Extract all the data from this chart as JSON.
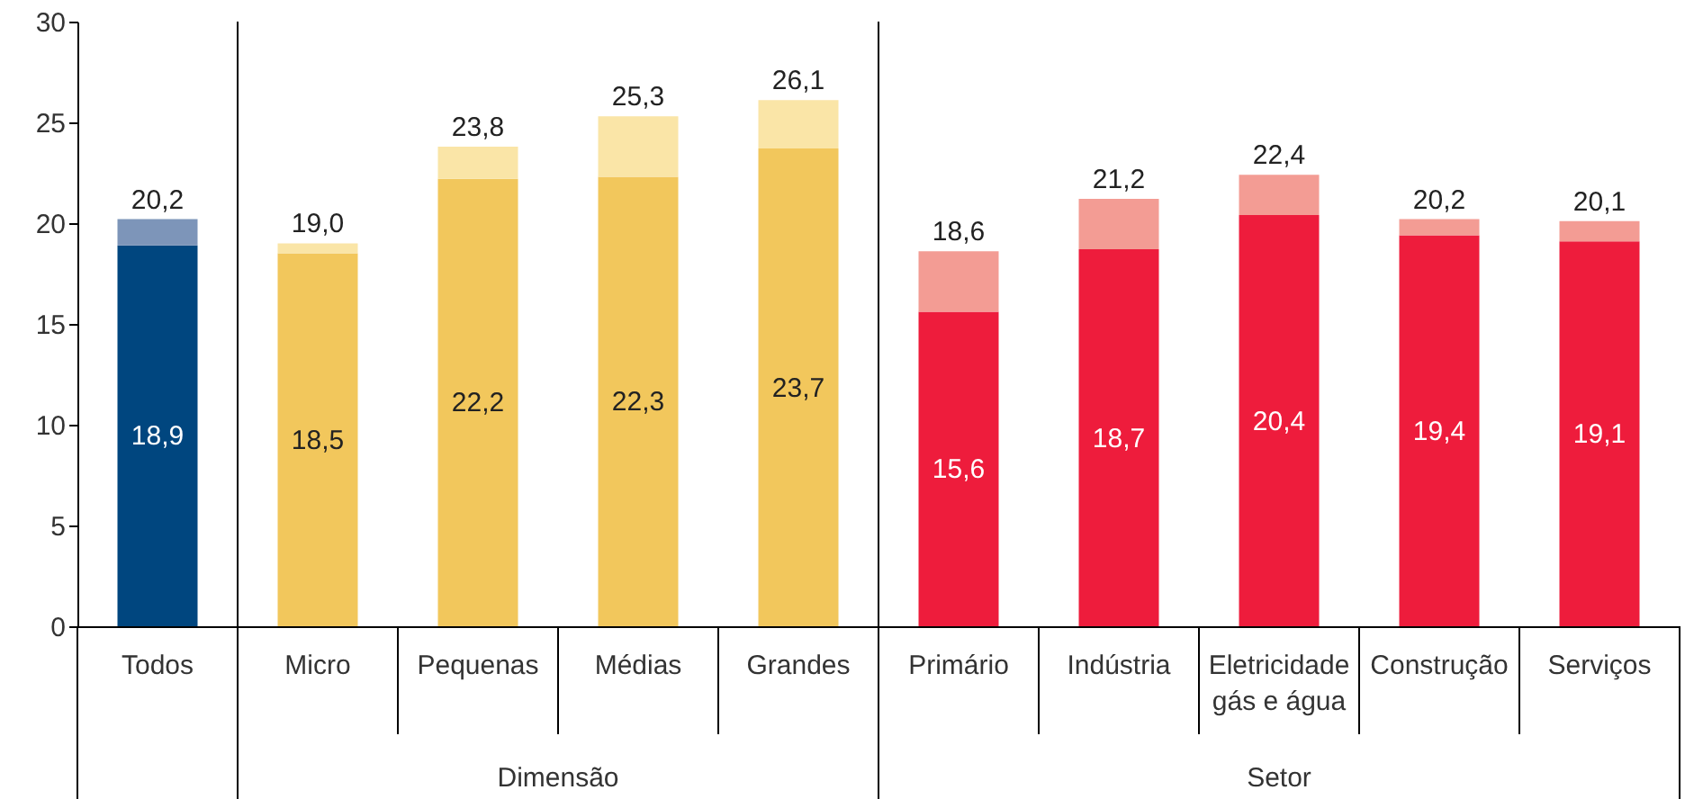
{
  "chart_data": {
    "type": "bar",
    "stacked": true,
    "categories": [
      "Todos",
      "Micro",
      "Pequenas",
      "Médias",
      "Grandes",
      "Primário",
      "Indústria",
      "Eletricidade gás e água",
      "Construção",
      "Serviços"
    ],
    "series": [
      {
        "colors": [
          "#00467f",
          "#f2c75c",
          "#f2c75c",
          "#f2c75c",
          "#f2c75c",
          "#ee1c3c",
          "#ee1c3c",
          "#ee1c3c",
          "#ee1c3c",
          "#ee1c3c"
        ],
        "values": [
          18.9,
          18.5,
          22.2,
          22.3,
          23.7,
          15.6,
          18.7,
          20.4,
          19.4,
          19.1
        ],
        "value_labels": [
          "18,9",
          "18,5",
          "22,2",
          "22,3",
          "23,7",
          "15,6",
          "18,7",
          "20,4",
          "19,4",
          "19,1"
        ]
      },
      {
        "colors": [
          "#7d95b9",
          "#fae5a7",
          "#fae5a7",
          "#fae5a7",
          "#fae5a7",
          "#f39c94",
          "#f39c94",
          "#f39c94",
          "#f39c94",
          "#f39c94"
        ],
        "values": [
          1.3,
          0.5,
          1.6,
          3.0,
          2.4,
          3.0,
          2.5,
          2.0,
          0.8,
          1.0
        ]
      }
    ],
    "totals": [
      "20,2",
      "19,0",
      "23,8",
      "25,3",
      "26,1",
      "18,6",
      "21,2",
      "22,4",
      "20,2",
      "20,1"
    ],
    "ylim": [
      0,
      30
    ],
    "yticks": [
      0,
      5,
      10,
      15,
      20,
      25,
      30
    ],
    "grid": false,
    "annotations": [
      "Dimensão",
      "Setor"
    ]
  }
}
